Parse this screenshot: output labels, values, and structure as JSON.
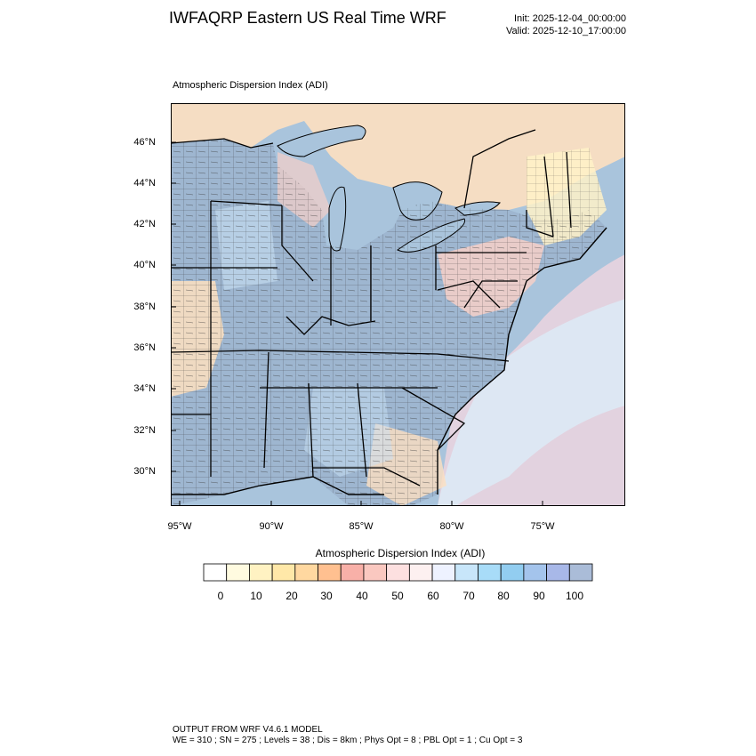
{
  "header": {
    "title": "IWFAQRP Eastern US Real Time WRF",
    "init": "Init: 2025-12-04_00:00:00",
    "valid": "Valid: 2025-12-10_17:00:00"
  },
  "plot": {
    "label": "Atmospheric Dispersion Index   (ADI)",
    "lat_labels": [
      "46°N",
      "44°N",
      "42°N",
      "40°N",
      "38°N",
      "36°N",
      "34°N",
      "32°N",
      "30°N"
    ],
    "lon_labels": [
      "95°W",
      "90°W",
      "85°W",
      "80°W",
      "75°W"
    ]
  },
  "colorbar": {
    "title": "Atmospheric Dispersion Index  (ADI)",
    "labels": [
      "0",
      "10",
      "20",
      "30",
      "40",
      "50",
      "60",
      "70",
      "80",
      "90",
      "100"
    ],
    "colors": [
      "#ffffff",
      "#fffbe0",
      "#fff2c2",
      "#ffe8a8",
      "#ffd8a0",
      "#ffc090",
      "#f8b0a8",
      "#fac8c0",
      "#fde0e0",
      "#fdf0f0",
      "#eef2ff",
      "#c8e6fa",
      "#a8dcf8",
      "#92cdf0",
      "#a4c4ec",
      "#a8b8e8",
      "#aabcd8"
    ]
  },
  "footer": {
    "line1": "OUTPUT FROM WRF V4.6.1 MODEL",
    "line2": "WE = 310 ; SN = 275 ; Levels = 38 ; Dis = 8km ; Phys Opt = 8 ; PBL Opt = 1 ; Cu Opt = 3"
  },
  "map_colors": {
    "water": "#a9c4dc",
    "land_blue": "#9eb6d0",
    "land_light": "#c8e0f4",
    "land_pink": "#f6d0c8",
    "land_peach": "#fde0c0",
    "land_yellow": "#fff2c8",
    "ocean_pink": "#fbd8e0",
    "ocean_light": "#dcecf8"
  }
}
